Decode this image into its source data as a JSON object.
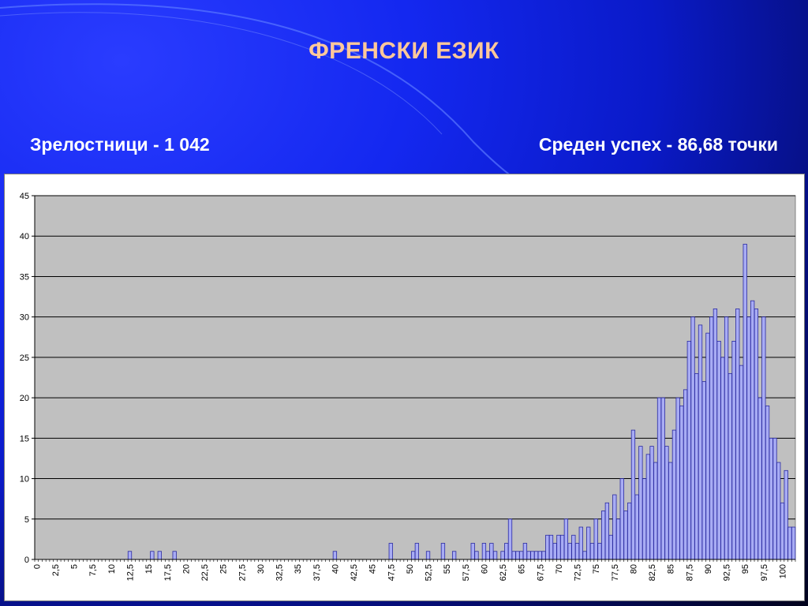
{
  "slide": {
    "title": "ФРЕНСКИ ЕЗИК",
    "graduates_label": "Зрелостници - 1 042",
    "average_label": "Среден успех - 86,68 точки"
  },
  "colors": {
    "title": "#ffc89a",
    "bar_fill": "#a8acf4",
    "bar_stroke": "#2a2aa0",
    "plot_bg": "#c0c0c0"
  },
  "chart_data": {
    "type": "bar",
    "title": "",
    "xlabel": "",
    "ylabel": "",
    "ylim": [
      0,
      45
    ],
    "yticks": [
      0,
      5,
      10,
      15,
      20,
      25,
      30,
      35,
      40,
      45
    ],
    "grid": true,
    "legend": "none",
    "bin_start": 0,
    "bin_step": 0.5,
    "x_tick_labels": [
      "0",
      "2,5",
      "5",
      "7,5",
      "10",
      "12,5",
      "15",
      "17,5",
      "20",
      "22,5",
      "25",
      "27,5",
      "30",
      "32,5",
      "35",
      "37,5",
      "40",
      "42,5",
      "45",
      "47,5",
      "50",
      "52,5",
      "55",
      "57,5",
      "60",
      "62,5",
      "65",
      "67,5",
      "70",
      "72,5",
      "75",
      "77,5",
      "80",
      "82,5",
      "85",
      "87,5",
      "90",
      "92,5",
      "95",
      "97,5",
      "100"
    ],
    "x_tick_values": [
      0,
      2.5,
      5,
      7.5,
      10,
      12.5,
      15,
      17.5,
      20,
      22.5,
      25,
      27.5,
      30,
      32.5,
      35,
      37.5,
      40,
      42.5,
      45,
      47.5,
      50,
      52.5,
      55,
      57.5,
      60,
      62.5,
      65,
      67.5,
      70,
      72.5,
      75,
      77.5,
      80,
      82.5,
      85,
      87.5,
      90,
      92.5,
      95,
      97.5,
      100
    ],
    "values": [
      0,
      0,
      0,
      0,
      0,
      0,
      0,
      0,
      0,
      0,
      0,
      0,
      0,
      0,
      0,
      0,
      0,
      0,
      0,
      0,
      0,
      0,
      0,
      0,
      0,
      1,
      0,
      0,
      0,
      0,
      0,
      1,
      0,
      1,
      0,
      0,
      0,
      1,
      0,
      0,
      0,
      0,
      0,
      0,
      0,
      0,
      0,
      0,
      0,
      0,
      0,
      0,
      0,
      0,
      0,
      0,
      0,
      0,
      0,
      0,
      0,
      0,
      0,
      0,
      0,
      0,
      0,
      0,
      0,
      0,
      0,
      0,
      0,
      0,
      0,
      0,
      0,
      0,
      0,
      0,
      1,
      0,
      0,
      0,
      0,
      0,
      0,
      0,
      0,
      0,
      0,
      0,
      0,
      0,
      0,
      2,
      0,
      0,
      0,
      0,
      0,
      1,
      2,
      0,
      0,
      1,
      0,
      0,
      0,
      2,
      0,
      0,
      1,
      0,
      0,
      0,
      0,
      2,
      1,
      0,
      2,
      1,
      2,
      1,
      0,
      1,
      2,
      5,
      1,
      1,
      1,
      2,
      1,
      1,
      1,
      1,
      1,
      3,
      3,
      2,
      3,
      3,
      5,
      2,
      3,
      2,
      4,
      1,
      4,
      2,
      5,
      2,
      6,
      7,
      3,
      8,
      5,
      10,
      6,
      7,
      16,
      8,
      14,
      10,
      13,
      14,
      12,
      20,
      20,
      14,
      12,
      16,
      20,
      19,
      21,
      27,
      30,
      23,
      29,
      22,
      28,
      30,
      31,
      27,
      25,
      30,
      23,
      27,
      31,
      24,
      39,
      30,
      32,
      31,
      20,
      30,
      19,
      15,
      15,
      12,
      7,
      11,
      4,
      4
    ]
  }
}
